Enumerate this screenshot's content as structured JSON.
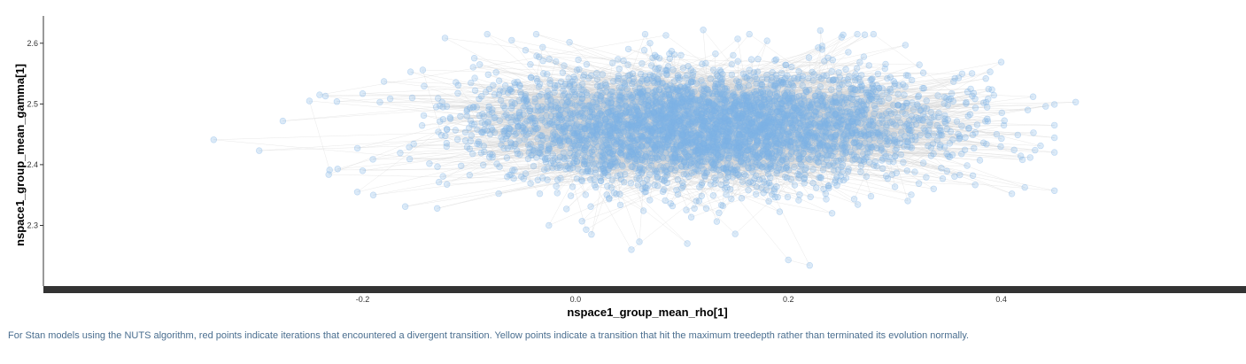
{
  "chart_data": {
    "type": "scatter",
    "title": "",
    "xlabel": "nspace1_group_mean_rho[1]",
    "ylabel": "nspace1_group_mean_gamma[1]",
    "xlim": [
      -0.5,
      0.63
    ],
    "ylim": [
      2.2,
      2.645
    ],
    "xticks": [
      -0.2,
      0.0,
      0.2,
      0.4
    ],
    "xtick_labels": [
      "-0.2",
      "0.0",
      "0.2",
      "0.4"
    ],
    "yticks": [
      2.3,
      2.4,
      2.5,
      2.6
    ],
    "ytick_labels": [
      "2.3",
      "2.4",
      "2.5",
      "2.6"
    ],
    "grid": false,
    "connected_lines": true,
    "point_color": "#7fb2e5",
    "line_color": "#d6d6d6",
    "axis_bar_color": "#333333",
    "points": [
      {
        "x": -0.34,
        "y": 2.441
      },
      {
        "x": -0.275,
        "y": 2.472
      },
      {
        "x": -0.25,
        "y": 2.505
      },
      {
        "x": -0.235,
        "y": 2.513
      },
      {
        "x": -0.2,
        "y": 2.517
      },
      {
        "x": -0.205,
        "y": 2.355
      },
      {
        "x": -0.19,
        "y": 2.35
      },
      {
        "x": -0.2,
        "y": 2.39
      },
      {
        "x": -0.18,
        "y": 2.537
      },
      {
        "x": -0.16,
        "y": 2.331
      },
      {
        "x": -0.155,
        "y": 2.553
      },
      {
        "x": -0.13,
        "y": 2.328
      },
      {
        "x": -0.09,
        "y": 2.565
      },
      {
        "x": -0.06,
        "y": 2.605
      },
      {
        "x": -0.025,
        "y": 2.3
      },
      {
        "x": 0.015,
        "y": 2.285
      },
      {
        "x": 0.01,
        "y": 2.293
      },
      {
        "x": 0.06,
        "y": 2.273
      },
      {
        "x": 0.07,
        "y": 2.6
      },
      {
        "x": 0.0525,
        "y": 2.26
      },
      {
        "x": 0.085,
        "y": 2.613
      },
      {
        "x": 0.105,
        "y": 2.27
      },
      {
        "x": 0.12,
        "y": 2.622
      },
      {
        "x": 0.15,
        "y": 2.286
      },
      {
        "x": 0.18,
        "y": 2.604
      },
      {
        "x": 0.2,
        "y": 2.243
      },
      {
        "x": 0.22,
        "y": 2.234
      },
      {
        "x": 0.23,
        "y": 2.621
      },
      {
        "x": 0.25,
        "y": 2.61
      },
      {
        "x": 0.28,
        "y": 2.615
      },
      {
        "x": 0.31,
        "y": 2.597
      },
      {
        "x": 0.345,
        "y": 2.377
      },
      {
        "x": 0.36,
        "y": 2.543
      },
      {
        "x": 0.4,
        "y": 2.569
      },
      {
        "x": 0.41,
        "y": 2.352
      },
      {
        "x": 0.42,
        "y": 2.408
      },
      {
        "x": 0.425,
        "y": 2.49
      },
      {
        "x": 0.43,
        "y": 2.512
      },
      {
        "x": 0.47,
        "y": 2.503
      },
      {
        "x": 0.13,
        "y": 2.451
      },
      {
        "x": 0.12,
        "y": 2.464
      },
      {
        "x": 0.19,
        "y": 2.478
      },
      {
        "x": 0.05,
        "y": 2.43
      },
      {
        "x": 0.0,
        "y": 2.486
      },
      {
        "x": -0.05,
        "y": 2.456
      }
    ],
    "synthetic_cloud": {
      "n": 4200,
      "x_mean": 0.125,
      "x_sd": 0.105,
      "y_mean": 2.462,
      "y_sd": 0.046
    }
  },
  "footer": {
    "note": "For Stan models using the NUTS algorithm, red points indicate iterations that encountered a divergent transition. Yellow points indicate a transition that hit the maximum treedepth rather than terminated its evolution normally."
  }
}
